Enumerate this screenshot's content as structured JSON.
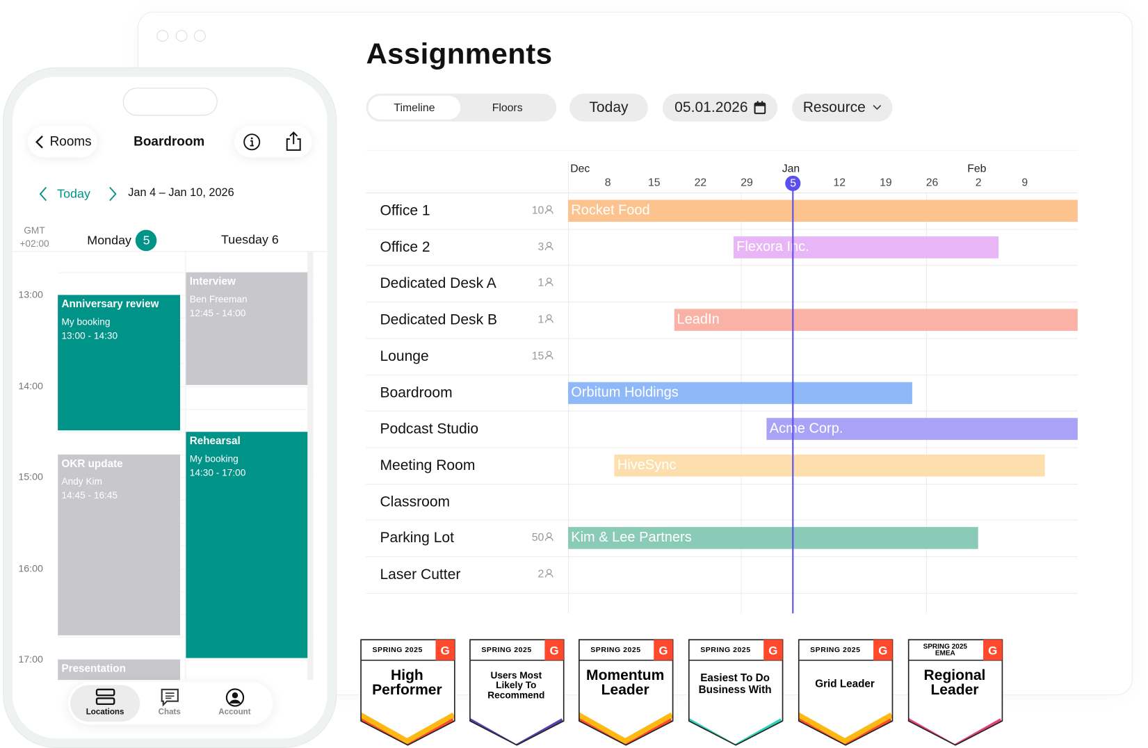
{
  "desktop": {
    "title": "Assignments",
    "view_tabs": [
      {
        "label": "Timeline",
        "selected": true
      },
      {
        "label": "Floors",
        "selected": false
      }
    ],
    "today_label": "Today",
    "date_value": "05.01.2026",
    "group_by": "Resource",
    "timeline": {
      "range": [
        "2025-12-02",
        "2026-02-17"
      ],
      "today": "2026-01-05",
      "months": [
        {
          "label": "Dec",
          "date": "2025-12-02"
        },
        {
          "label": "Jan",
          "date": "2026-01-03"
        },
        {
          "label": "Feb",
          "date": "2026-01-31"
        }
      ],
      "week_ticks": [
        {
          "label": "8",
          "date": "2025-12-08"
        },
        {
          "label": "15",
          "date": "2025-12-15"
        },
        {
          "label": "22",
          "date": "2025-12-22"
        },
        {
          "label": "29",
          "date": "2025-12-29"
        },
        {
          "label": "5",
          "date": "2026-01-05"
        },
        {
          "label": "12",
          "date": "2026-01-12"
        },
        {
          "label": "19",
          "date": "2026-01-19"
        },
        {
          "label": "26",
          "date": "2026-01-26"
        },
        {
          "label": "2",
          "date": "2026-02-02"
        },
        {
          "label": "9",
          "date": "2026-02-09"
        }
      ],
      "resources": [
        {
          "name": "Office 1",
          "capacity": "10",
          "booking": {
            "label": "Rocket Food",
            "start": "2025-12-02",
            "end": "2026-02-17",
            "color": "#fdc38e"
          }
        },
        {
          "name": "Office 2",
          "capacity": "3",
          "booking": {
            "label": "Flexora Inc.",
            "start": "2025-12-27",
            "end": "2026-02-05",
            "color": "#e8b6f7"
          }
        },
        {
          "name": "Dedicated Desk A",
          "capacity": "1",
          "booking": null
        },
        {
          "name": "Dedicated Desk B",
          "capacity": "1",
          "booking": {
            "label": "LeadIn",
            "start": "2025-12-18",
            "end": "2026-02-17",
            "color": "#fbb2a6"
          }
        },
        {
          "name": "Lounge",
          "capacity": "15",
          "booking": null
        },
        {
          "name": "Boardroom",
          "capacity": "",
          "booking": {
            "label": "Orbitum Holdings",
            "start": "2025-12-02",
            "end": "2026-01-23",
            "color": "#8fb8f8"
          }
        },
        {
          "name": "Podcast Studio",
          "capacity": "",
          "booking": {
            "label": "Acme Corp.",
            "start": "2026-01-01",
            "end": "2026-02-17",
            "color": "#a9a3f7"
          }
        },
        {
          "name": "Meeting Room",
          "capacity": "",
          "booking": {
            "label": "HiveSync",
            "start": "2025-12-09",
            "end": "2026-02-12",
            "color": "#fddfae"
          }
        },
        {
          "name": "Classroom",
          "capacity": "",
          "booking": null
        },
        {
          "name": "Parking Lot",
          "capacity": "50",
          "booking": {
            "label": "Kim & Lee Partners",
            "start": "2025-12-02",
            "end": "2026-02-02",
            "color": "#89cbb7"
          }
        },
        {
          "name": "Laser Cutter",
          "capacity": "2",
          "booking": null
        }
      ],
      "today_color": "#5b4ff0"
    }
  },
  "phone": {
    "back_label": "Rooms",
    "title": "Boardroom",
    "today_label": "Today",
    "range_label": "Jan 4 – Jan 10, 2026",
    "timezone": [
      "GMT",
      "+02:00"
    ],
    "days": [
      {
        "name": "Monday",
        "num": "5",
        "today": true
      },
      {
        "label": "Tuesday 6"
      }
    ],
    "hours": [
      "13:00",
      "14:00",
      "15:00",
      "16:00",
      "17:00"
    ],
    "events": [
      {
        "day": 0,
        "title": "Anniversary review",
        "sub": "My booking",
        "time": "13:00 - 14:30",
        "start": 13.0,
        "end": 14.5,
        "mine": true
      },
      {
        "day": 1,
        "title": "Interview",
        "sub": "Ben Freeman",
        "time": "12:45 - 14:00",
        "start": 12.75,
        "end": 14.0,
        "mine": false
      },
      {
        "day": 1,
        "title": "Rehearsal",
        "sub": "My booking",
        "time": "14:30 - 17:00",
        "start": 14.5,
        "end": 17.0,
        "mine": true
      },
      {
        "day": 0,
        "title": "OKR update",
        "sub": "Andy Kim",
        "time": "14:45 - 16:45",
        "start": 14.75,
        "end": 16.75,
        "mine": false
      },
      {
        "day": 0,
        "title": "Presentation",
        "sub": "",
        "time": "",
        "start": 17.0,
        "end": 18.0,
        "mine": false
      }
    ],
    "tabs": [
      {
        "label": "Locations",
        "icon": "locations-icon",
        "selected": true
      },
      {
        "label": "Chats",
        "icon": "chats-icon"
      },
      {
        "label": "Account",
        "icon": "account-icon"
      }
    ],
    "accent": "#009388"
  },
  "badges": [
    {
      "season": "SPRING 2025",
      "region": "",
      "title": [
        "High",
        "Performer"
      ],
      "colors": [
        "#fdb913",
        "#ff492c"
      ]
    },
    {
      "season": "SPRING 2025",
      "region": "",
      "title": [
        "Users Most",
        "Likely To",
        "Recommend"
      ],
      "colors": [
        "#5a3fb0"
      ]
    },
    {
      "season": "SPRING 2025",
      "region": "",
      "title": [
        "Momentum",
        "Leader"
      ],
      "colors": [
        "#fdb913",
        "#ff492c"
      ]
    },
    {
      "season": "SPRING 2025",
      "region": "",
      "title": [
        "Easiest To Do",
        "Business With"
      ],
      "colors": [
        "#2ed3b7"
      ]
    },
    {
      "season": "SPRING 2025",
      "region": "",
      "title": [
        "Grid Leader"
      ],
      "colors": [
        "#fdb913",
        "#ff492c"
      ]
    },
    {
      "season": "SPRING 2025",
      "region": "EMEA",
      "title": [
        "Regional",
        "Leader"
      ],
      "colors": [
        "#e6407e"
      ]
    }
  ]
}
